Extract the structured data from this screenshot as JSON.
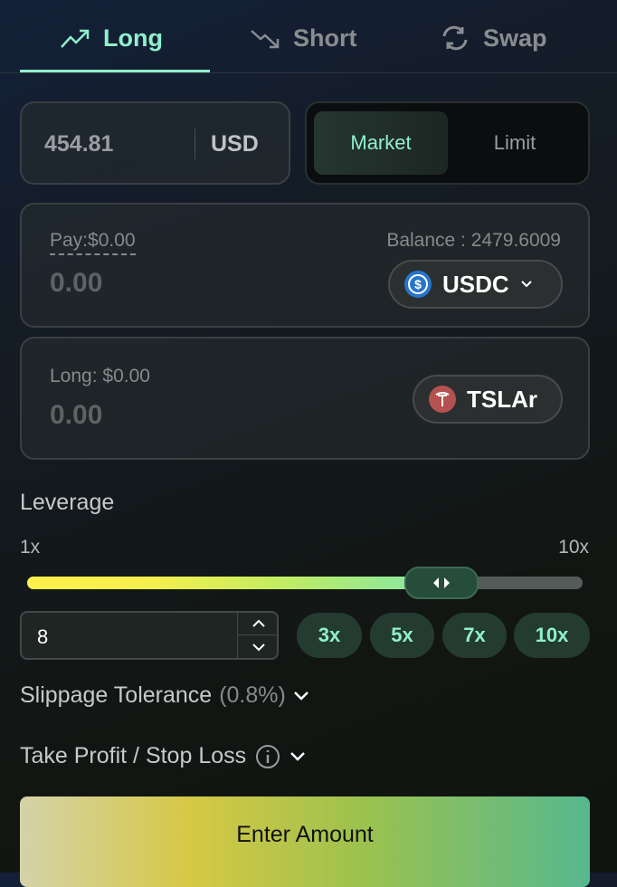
{
  "tabs": [
    {
      "label": "Long",
      "icon": "trending-up-icon",
      "active": true
    },
    {
      "label": "Short",
      "icon": "trending-down-icon"
    },
    {
      "label": "Swap",
      "icon": "refresh-icon"
    }
  ],
  "price": {
    "value": "454.81",
    "unit": "USD"
  },
  "order_type": {
    "options": [
      "Market",
      "Limit"
    ],
    "selected": "Market"
  },
  "pay": {
    "label": "Pay:$0.00",
    "balance": "Balance : 2479.6009",
    "amount_placeholder": "0.00",
    "token": "USDC"
  },
  "long": {
    "label": "Long: $0.00",
    "amount_placeholder": "0.00",
    "token": "TSLAr"
  },
  "leverage": {
    "title": "Leverage",
    "min_label": "1x",
    "max_label": "10x",
    "min": 1,
    "max": 10,
    "value": 8,
    "input_value": "8",
    "presets": [
      "3x",
      "5x",
      "7x",
      "10x"
    ]
  },
  "slippage": {
    "label": "Slippage Tolerance",
    "value": "(0.8%)"
  },
  "tpsl": {
    "label": "Take Profit / Stop Loss"
  },
  "submit": {
    "label": "Enter Amount"
  },
  "colors": {
    "accent": "#8ff0cc",
    "usdc": "#2775ca",
    "tesla": "#b5524f"
  }
}
